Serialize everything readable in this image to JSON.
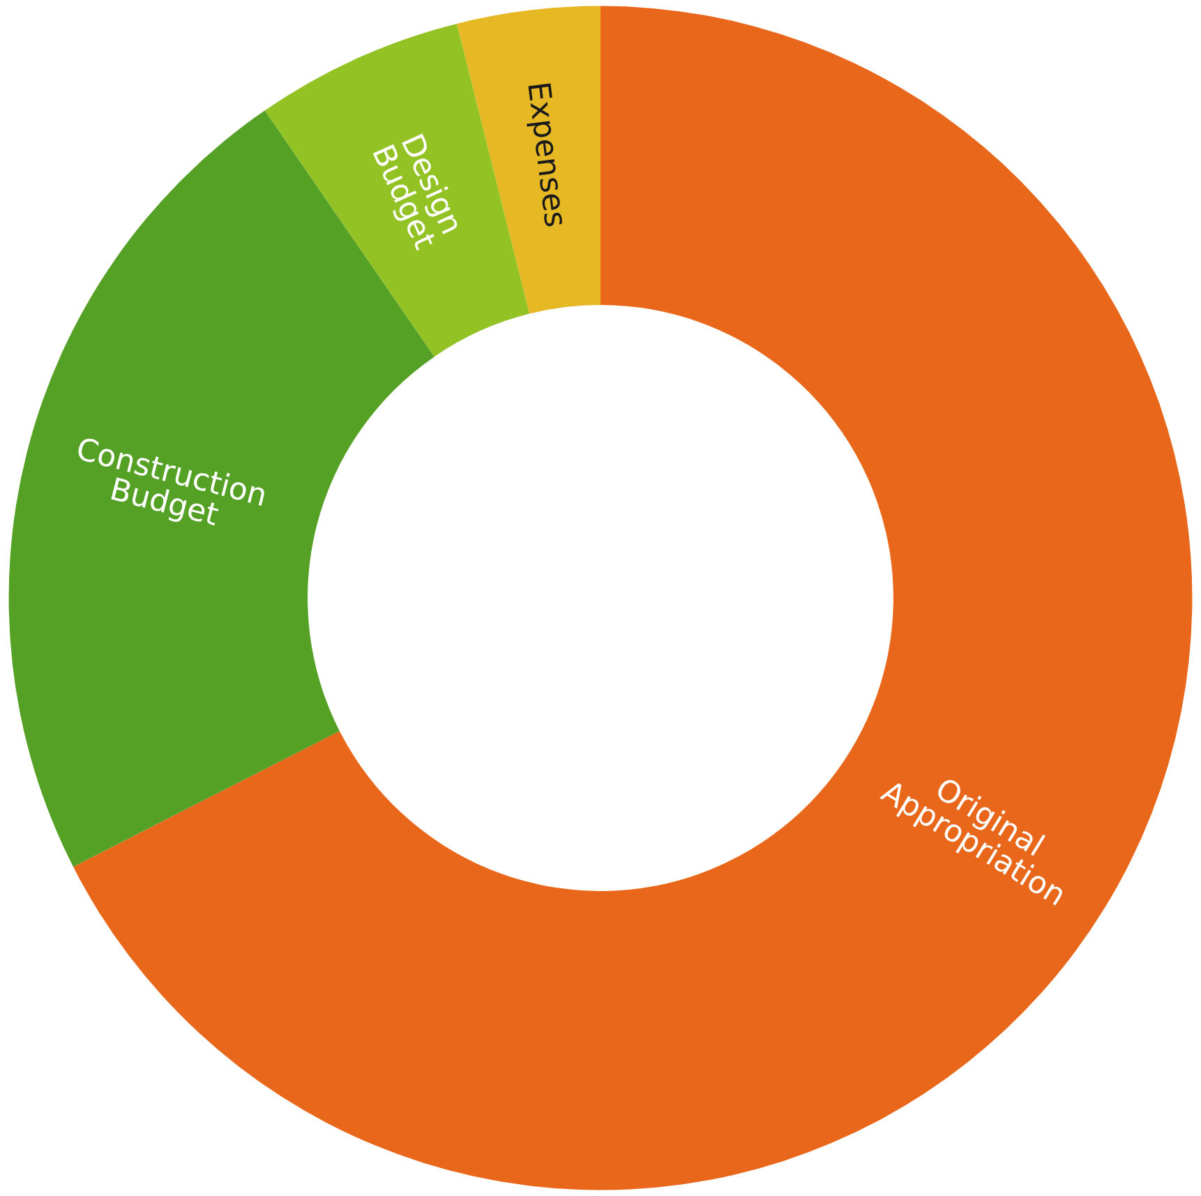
{
  "chart_data": {
    "type": "donut",
    "categories": [
      "Original Appropriation",
      "Construction Budget",
      "Design Budget",
      "Expenses"
    ],
    "values": [
      67.5,
      22.9,
      5.7,
      3.9
    ],
    "colors": [
      "#e8671a",
      "#55a125",
      "#93c225",
      "#e6b823"
    ],
    "legend": false
  }
}
